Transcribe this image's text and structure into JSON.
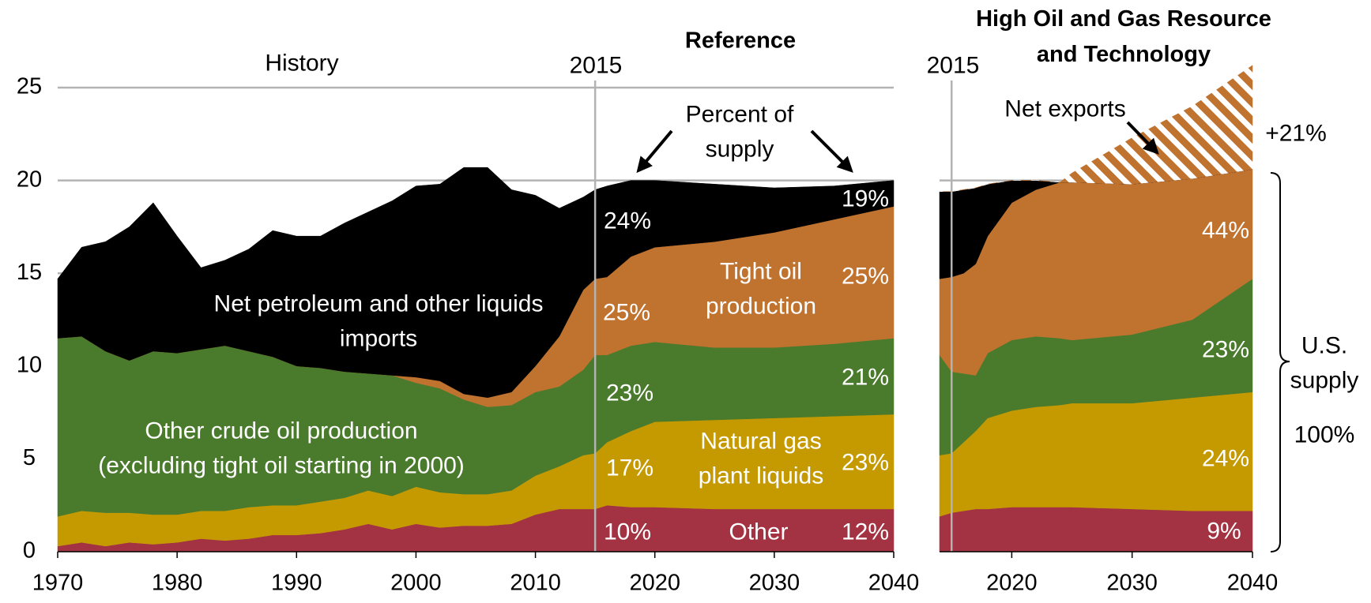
{
  "chart_data": [
    {
      "type": "area",
      "title": "Reference",
      "period_label": "History",
      "divider_x": 2015,
      "x": [
        1970,
        1972,
        1974,
        1976,
        1978,
        1980,
        1982,
        1984,
        1986,
        1988,
        1990,
        1992,
        1994,
        1996,
        1998,
        2000,
        2002,
        2004,
        2006,
        2008,
        2010,
        2012,
        2014,
        2015,
        2016,
        2018,
        2020,
        2025,
        2030,
        2035,
        2040
      ],
      "series": [
        {
          "name": "Other",
          "color": "#a33242",
          "values": [
            0.3,
            0.5,
            0.3,
            0.5,
            0.4,
            0.5,
            0.7,
            0.6,
            0.7,
            0.9,
            0.9,
            1.0,
            1.2,
            1.5,
            1.2,
            1.5,
            1.3,
            1.4,
            1.4,
            1.5,
            2.0,
            2.3,
            2.3,
            2.3,
            2.5,
            2.4,
            2.4,
            2.3,
            2.3,
            2.3,
            2.3
          ]
        },
        {
          "name": "Natural gas plant liquids",
          "color": "#c49a00",
          "values": [
            1.6,
            1.7,
            1.8,
            1.6,
            1.6,
            1.5,
            1.5,
            1.6,
            1.7,
            1.6,
            1.6,
            1.7,
            1.7,
            1.8,
            1.8,
            2.0,
            1.9,
            1.7,
            1.7,
            1.8,
            2.1,
            2.3,
            2.9,
            3.0,
            3.4,
            4.1,
            4.6,
            4.8,
            4.9,
            5.0,
            5.1
          ]
        },
        {
          "name": "Other crude oil production (excluding tight oil starting in 2000)",
          "color": "#4a7a2c",
          "values": [
            9.6,
            9.4,
            8.7,
            8.2,
            8.8,
            8.7,
            8.7,
            8.9,
            8.4,
            8.0,
            7.5,
            7.2,
            6.8,
            6.3,
            6.5,
            5.6,
            5.6,
            5.1,
            4.7,
            4.6,
            4.5,
            4.3,
            4.6,
            5.3,
            4.7,
            4.6,
            4.3,
            3.9,
            3.8,
            3.9,
            4.1
          ]
        },
        {
          "name": "Tight oil production",
          "color": "#c0722f",
          "values": [
            0,
            0,
            0,
            0,
            0,
            0,
            0,
            0,
            0,
            0,
            0,
            0,
            0,
            0,
            0,
            0.3,
            0.4,
            0.3,
            0.5,
            0.7,
            1.4,
            2.7,
            4.3,
            4.1,
            4.2,
            4.8,
            5.1,
            5.7,
            6.2,
            6.7,
            7.1
          ]
        },
        {
          "name": "Net petroleum and other liquids imports",
          "color": "#000000",
          "values": [
            3.2,
            4.8,
            5.9,
            7.2,
            8.0,
            6.3,
            4.4,
            4.6,
            5.5,
            6.8,
            7.0,
            7.1,
            8.0,
            8.7,
            9.4,
            10.3,
            10.6,
            12.2,
            12.4,
            10.9,
            9.2,
            6.9,
            5.0,
            4.8,
            4.9,
            4.1,
            3.6,
            3.1,
            2.4,
            1.8,
            1.4
          ]
        }
      ],
      "xlim": [
        1970,
        2040
      ],
      "xticks": [
        1970,
        1980,
        1990,
        2000,
        2010,
        2020,
        2030,
        2040
      ],
      "ylim": [
        0,
        25
      ],
      "yticks": [
        0,
        5,
        10,
        15,
        20,
        25
      ],
      "grid": true,
      "annotations": {
        "percent_of_supply": "Percent of supply",
        "shares_2015": [
          "24%",
          "25%",
          "23%",
          "17%",
          "10%"
        ],
        "shares_2040": [
          "19%",
          "25%",
          "21%",
          "23%",
          "12%"
        ]
      }
    },
    {
      "type": "area",
      "title": "High Oil and Gas Resource and Technology",
      "divider_x": 2015,
      "x": [
        2014,
        2015,
        2016,
        2017,
        2018,
        2020,
        2022,
        2024,
        2025,
        2030,
        2035,
        2040
      ],
      "series": [
        {
          "color": "#a33242",
          "values": [
            1.9,
            2.1,
            2.2,
            2.3,
            2.3,
            2.4,
            2.4,
            2.4,
            2.4,
            2.3,
            2.2,
            2.2
          ]
        },
        {
          "color": "#c49a00",
          "values": [
            3.3,
            3.2,
            3.7,
            4.2,
            4.9,
            5.2,
            5.4,
            5.5,
            5.6,
            5.7,
            6.1,
            6.4
          ]
        },
        {
          "color": "#4a7a2c",
          "values": [
            5.4,
            4.4,
            3.7,
            3.0,
            3.5,
            3.8,
            3.8,
            3.6,
            3.4,
            3.7,
            4.2,
            6.1
          ]
        },
        {
          "color": "#c0722f",
          "values": [
            4.1,
            5.1,
            5.4,
            6.0,
            6.3,
            7.4,
            7.9,
            8.4,
            8.5,
            8.1,
            7.6,
            5.9
          ]
        },
        {
          "color": "#000000",
          "values": [
            4.7,
            4.6,
            4.5,
            4.1,
            2.8,
            1.2,
            0.5,
            0,
            0,
            0,
            0,
            0
          ]
        },
        {
          "name": "Net exports",
          "color": "#c0722f",
          "hatch": true,
          "values": [
            0,
            0,
            0,
            0,
            0,
            0,
            0,
            0,
            0.5,
            2.5,
            3.9,
            5.6
          ]
        }
      ],
      "xlim": [
        2014,
        2040
      ],
      "xticks": [
        2020,
        2030,
        2040
      ],
      "ylim": [
        0,
        25
      ],
      "grid": true,
      "annotations": {
        "exports_share": "+21%",
        "supply_label": "U.S. supply",
        "supply_share": "100%",
        "shares_2040": [
          "44%",
          "23%",
          "24%",
          "9%"
        ]
      }
    }
  ]
}
